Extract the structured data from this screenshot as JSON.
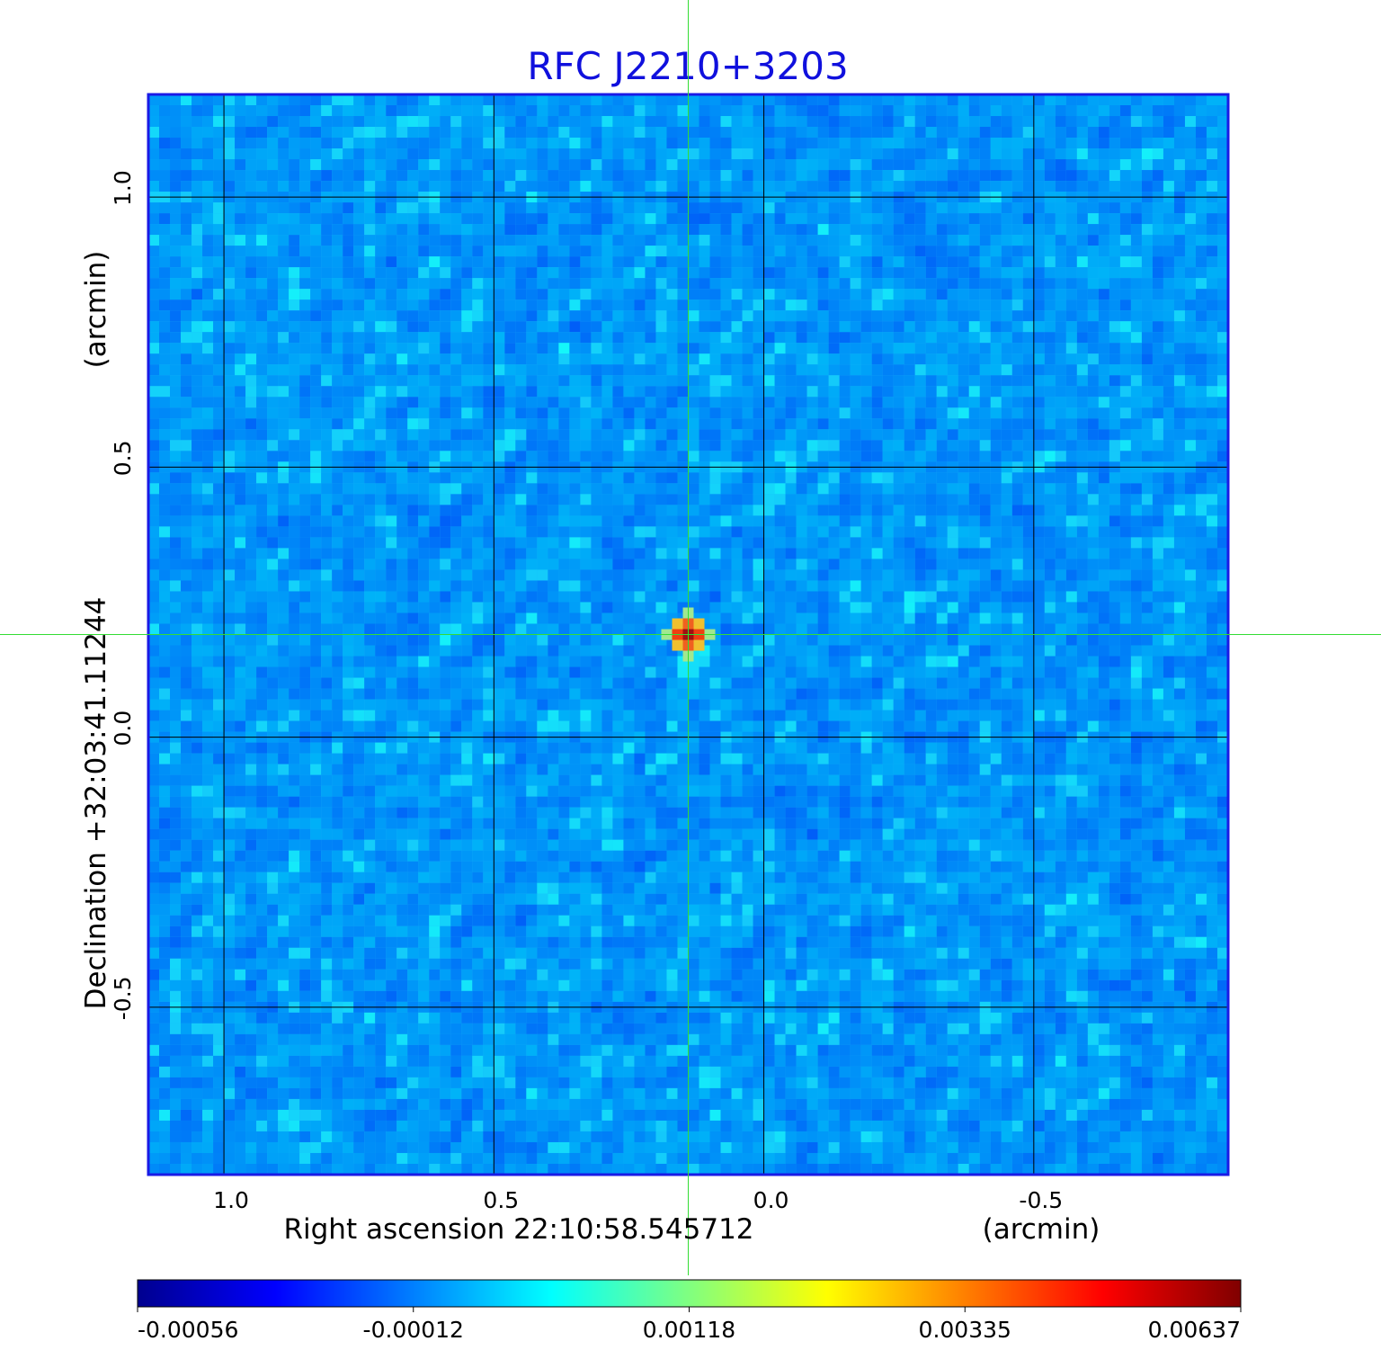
{
  "chart_data": {
    "type": "heatmap",
    "title": "RFC J2210+3203",
    "xlabel": "Right ascension  22:10:58.545712",
    "xunit": "(arcmin)",
    "ylabel": "Declination  +32:03:41.11244",
    "yunit": "(arcmin)",
    "xlim": [
      1.14,
      -0.86
    ],
    "ylim": [
      -0.81,
      1.19
    ],
    "xticks": [
      1.0,
      0.5,
      0.0,
      -0.5
    ],
    "xtick_labels": [
      "1.0",
      "0.5",
      "0.0",
      "-0.5"
    ],
    "yticks": [
      1.0,
      0.5,
      0.0,
      -0.5
    ],
    "ytick_labels": [
      "1.0",
      "0.5",
      "0.0",
      "-0.5"
    ],
    "grid": true,
    "crosshair": {
      "x": 0.14,
      "y": 0.19
    },
    "source_peak": {
      "x": 0.14,
      "y": 0.19,
      "value": 0.00637
    },
    "noise_level": -0.00012,
    "colorbar": {
      "min": -0.00056,
      "max": 0.00637,
      "ticks": [
        -0.00056,
        -0.00012,
        0.00118,
        0.00335,
        0.00637
      ],
      "tick_labels": [
        "-0.00056",
        "-0.00012",
        "0.00118",
        "0.00335",
        "0.00637"
      ],
      "colormap": "jet"
    },
    "colors": {
      "title": "#1010dd",
      "frame": "#1a1ae6",
      "grid": "#000000",
      "crosshair": "#33dd33",
      "background_noise": "#22b6f8"
    }
  }
}
